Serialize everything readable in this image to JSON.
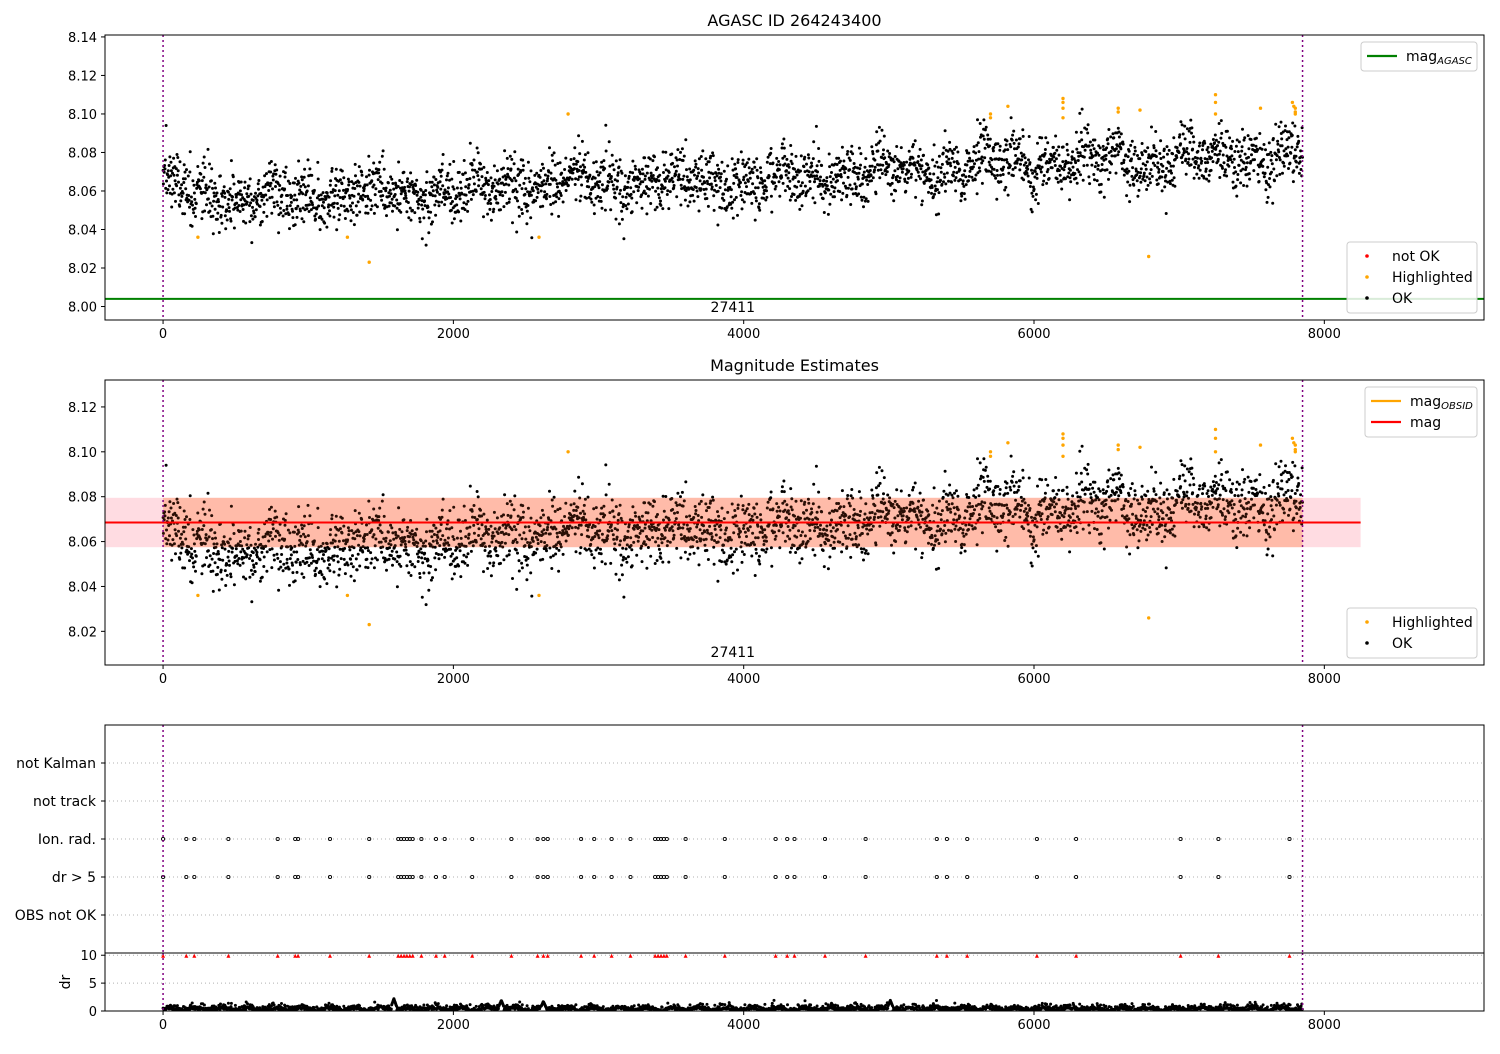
{
  "chart_data": [
    {
      "id": "top",
      "type": "scatter",
      "title": "AGASC ID 264243400",
      "xlim": [
        -400,
        9100
      ],
      "ylim": [
        7.993,
        8.141
      ],
      "xticks": [
        0,
        2000,
        4000,
        6000,
        8000
      ],
      "yticks": [
        8.0,
        8.02,
        8.04,
        8.06,
        8.08,
        8.1,
        8.12,
        8.14
      ],
      "ytick_decimals": 2,
      "grid": false,
      "vlines": [
        0,
        7850
      ],
      "hline": {
        "y": 8.004,
        "color": "#008000",
        "label": "mag",
        "label_sub": "AGASC"
      },
      "annotation": {
        "text": "27411",
        "x": 3925
      },
      "legend_top": {
        "placement": "top-right",
        "entries": [
          {
            "label": "mag",
            "sub": "AGASC",
            "color": "#008000",
            "kind": "line"
          }
        ]
      },
      "legend_bottom": {
        "placement": "bottom-right",
        "entries": [
          {
            "label": "not OK",
            "color": "#ff0000",
            "kind": "dot"
          },
          {
            "label": "Highlighted",
            "color": "#ffa500",
            "kind": "dot"
          },
          {
            "label": "OK",
            "color": "#000000",
            "kind": "dot"
          }
        ]
      },
      "series": [
        {
          "name": "OK",
          "color": "#000000",
          "trend": {
            "x": [
              0,
              500,
              1200,
              2000,
              3000,
              4000,
              5000,
              6000,
              7000,
              7850
            ],
            "y": [
              8.063,
              8.055,
              8.058,
              8.06,
              8.065,
              8.065,
              8.07,
              8.075,
              8.078,
              8.077
            ]
          },
          "spread": 0.0075
        },
        {
          "name": "Highlighted",
          "color": "#ffa500",
          "points": [
            [
              240,
              8.036
            ],
            [
              1270,
              8.036
            ],
            [
              1420,
              8.023
            ],
            [
              2590,
              8.036
            ],
            [
              2790,
              8.1
            ],
            [
              5700,
              8.1
            ],
            [
              5700,
              8.098
            ],
            [
              5820,
              8.104
            ],
            [
              6200,
              8.108
            ],
            [
              6200,
              8.106
            ],
            [
              6200,
              8.103
            ],
            [
              6200,
              8.098
            ],
            [
              6580,
              8.103
            ],
            [
              6580,
              8.101
            ],
            [
              6730,
              8.102
            ],
            [
              6790,
              8.026
            ],
            [
              7250,
              8.11
            ],
            [
              7250,
              8.106
            ],
            [
              7250,
              8.1
            ],
            [
              7560,
              8.103
            ],
            [
              7780,
              8.106
            ],
            [
              7790,
              8.104
            ],
            [
              7800,
              8.103
            ],
            [
              7800,
              8.101
            ],
            [
              7800,
              8.1
            ]
          ]
        }
      ]
    },
    {
      "id": "mid",
      "type": "scatter",
      "title": "Magnitude Estimates",
      "xlim": [
        -400,
        9100
      ],
      "ylim": [
        8.005,
        8.132
      ],
      "xticks": [
        0,
        2000,
        4000,
        6000,
        8000
      ],
      "yticks": [
        8.02,
        8.04,
        8.06,
        8.08,
        8.1,
        8.12
      ],
      "ytick_decimals": 2,
      "grid": false,
      "vlines": [
        0,
        7850
      ],
      "mag_line": {
        "y": 8.0685,
        "x": [
          -400,
          8250
        ],
        "color": "#ff0000"
      },
      "band_pink": {
        "y": [
          8.0575,
          8.0795
        ],
        "x": [
          -400,
          8250
        ],
        "color": "#ffc0cb"
      },
      "band_orange": {
        "y": [
          8.0575,
          8.0795
        ],
        "x": [
          0,
          7850
        ],
        "color": "#ffa07a"
      },
      "annotation": {
        "text": "27411",
        "x": 3925
      },
      "legend_top": {
        "placement": "top-right",
        "entries": [
          {
            "label": "mag",
            "sub": "OBSID",
            "color": "#ffa500",
            "kind": "line"
          },
          {
            "label": "mag",
            "sub": "",
            "color": "#ff0000",
            "kind": "line"
          }
        ]
      },
      "legend_bottom": {
        "placement": "bottom-right",
        "entries": [
          {
            "label": "Highlighted",
            "color": "#ffa500",
            "kind": "dot"
          },
          {
            "label": "OK",
            "color": "#000000",
            "kind": "dot"
          }
        ]
      }
    },
    {
      "id": "flags",
      "type": "scatter",
      "xlim": [
        -400,
        9100
      ],
      "xticks": [
        0,
        2000,
        4000,
        6000,
        8000
      ],
      "vlines": [
        0,
        7850
      ],
      "categories": [
        "not Kalman",
        "not track",
        "Ion. rad.",
        "dr > 5",
        "OBS not OK"
      ],
      "flag_x": [
        0,
        160,
        215,
        450,
        790,
        910,
        930,
        1150,
        1420,
        1620,
        1640,
        1660,
        1680,
        1700,
        1720,
        1780,
        1880,
        1940,
        2130,
        2400,
        2580,
        2620,
        2650,
        2880,
        2970,
        3090,
        3220,
        3390,
        3410,
        3430,
        3450,
        3470,
        3600,
        3870,
        4220,
        4300,
        4350,
        4560,
        4840,
        5330,
        5400,
        5540,
        6020,
        6290,
        7010,
        7270,
        7760
      ],
      "flag_rows": [
        "Ion. rad.",
        "dr > 5"
      ]
    },
    {
      "id": "dr",
      "type": "line",
      "ylabel": "dr",
      "xlim": [
        -400,
        9100
      ],
      "ylim": [
        0,
        10.4
      ],
      "xticks": [
        0,
        2000,
        4000,
        6000,
        8000
      ],
      "yticks": [
        0,
        5,
        10
      ],
      "grid": true,
      "vlines": [
        0,
        7850
      ],
      "threshold_marker": {
        "y": 9.9,
        "color": "#ff0000",
        "kind": "triangle"
      },
      "series": [
        {
          "name": "dr",
          "color": "#000000",
          "typical": [
            0.1,
            1.6
          ],
          "peaks": [
            [
              1590,
              2.2
            ],
            [
              2330,
              1.9
            ],
            [
              2620,
              1.7
            ],
            [
              5010,
              1.9
            ]
          ]
        }
      ]
    }
  ]
}
